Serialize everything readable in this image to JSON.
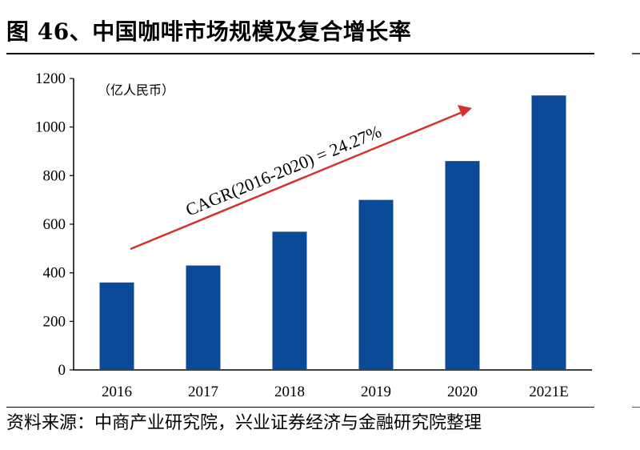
{
  "header": {
    "title": "图 46、中国咖啡市场规模及复合增长率"
  },
  "footer": {
    "source": "资料来源：中商产业研究院，兴业证券经济与金融研究院整理"
  },
  "chart_data": {
    "type": "bar",
    "categories": [
      "2016",
      "2017",
      "2018",
      "2019",
      "2020",
      "2021E"
    ],
    "values": [
      360,
      430,
      569,
      700,
      860,
      1130
    ],
    "unit_label": "（亿人民币）",
    "ylim": [
      0,
      1200
    ],
    "yticks": [
      0,
      200,
      400,
      600,
      800,
      1000,
      1200
    ],
    "bar_color": "#0b4a96",
    "arrow_color": "#d6312d",
    "annotation": "CAGR(2016-2020) = 24.27%",
    "grid": false,
    "legend": "none"
  }
}
